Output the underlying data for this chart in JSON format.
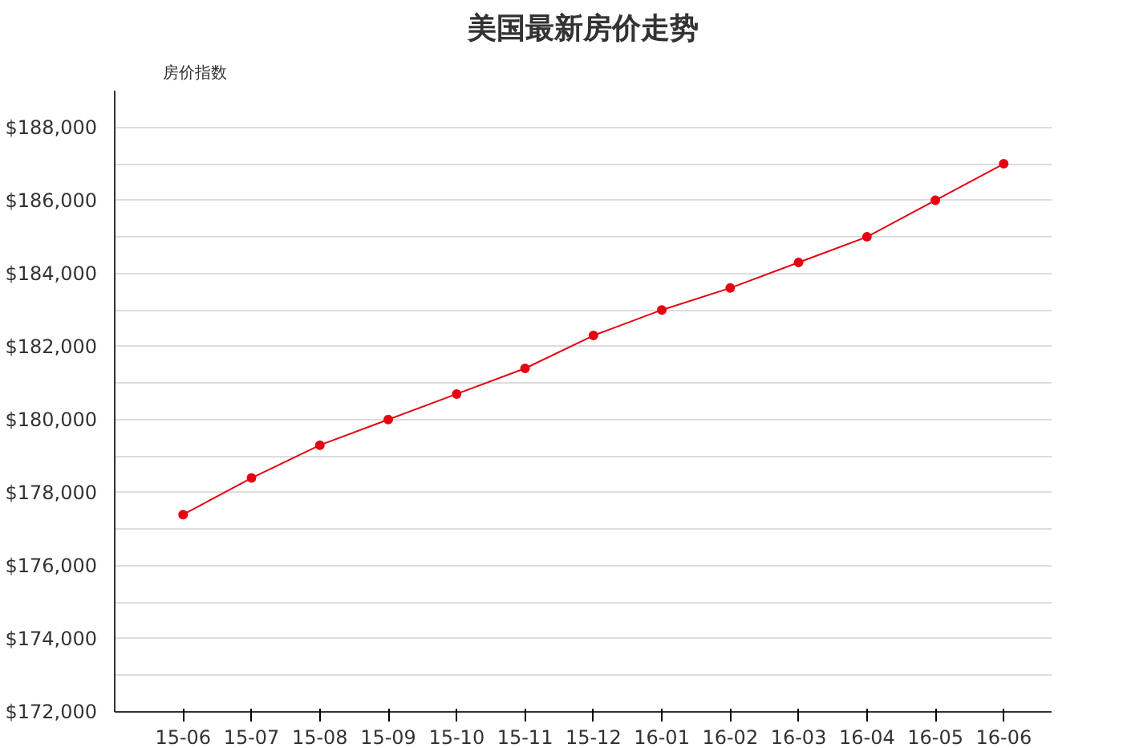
{
  "chart_data": {
    "type": "line",
    "title": "美国最新房价走势",
    "ylabel": "房价指数",
    "categories": [
      "15-06",
      "15-07",
      "15-08",
      "15-09",
      "15-10",
      "15-11",
      "15-12",
      "16-01",
      "16-02",
      "16-03",
      "16-04",
      "16-05",
      "16-06"
    ],
    "series": [
      {
        "color": "#e60012",
        "values": [
          177400,
          178400,
          179300,
          180000,
          180700,
          181400,
          182300,
          183000,
          183600,
          184300,
          185000,
          186000,
          187000
        ]
      }
    ],
    "ylim": [
      172000,
      189000
    ],
    "yticks": [
      {
        "value": 172000,
        "label": "$172,000"
      },
      {
        "value": 173000,
        "label": null
      },
      {
        "value": 174000,
        "label": "$174,000"
      },
      {
        "value": 175000,
        "label": null
      },
      {
        "value": 176000,
        "label": "$176,000"
      },
      {
        "value": 177000,
        "label": null
      },
      {
        "value": 178000,
        "label": "$178,000"
      },
      {
        "value": 179000,
        "label": null
      },
      {
        "value": 180000,
        "label": "$180,000"
      },
      {
        "value": 181000,
        "label": null
      },
      {
        "value": 182000,
        "label": "$182,000"
      },
      {
        "value": 183000,
        "label": null
      },
      {
        "value": 184000,
        "label": "$184,000"
      },
      {
        "value": 185000,
        "label": null
      },
      {
        "value": 186000,
        "label": "$186,000"
      },
      {
        "value": 187000,
        "label": null
      },
      {
        "value": 188000,
        "label": "$188,000"
      }
    ],
    "grid": "y",
    "marker": "circle",
    "line_style": "solid"
  }
}
